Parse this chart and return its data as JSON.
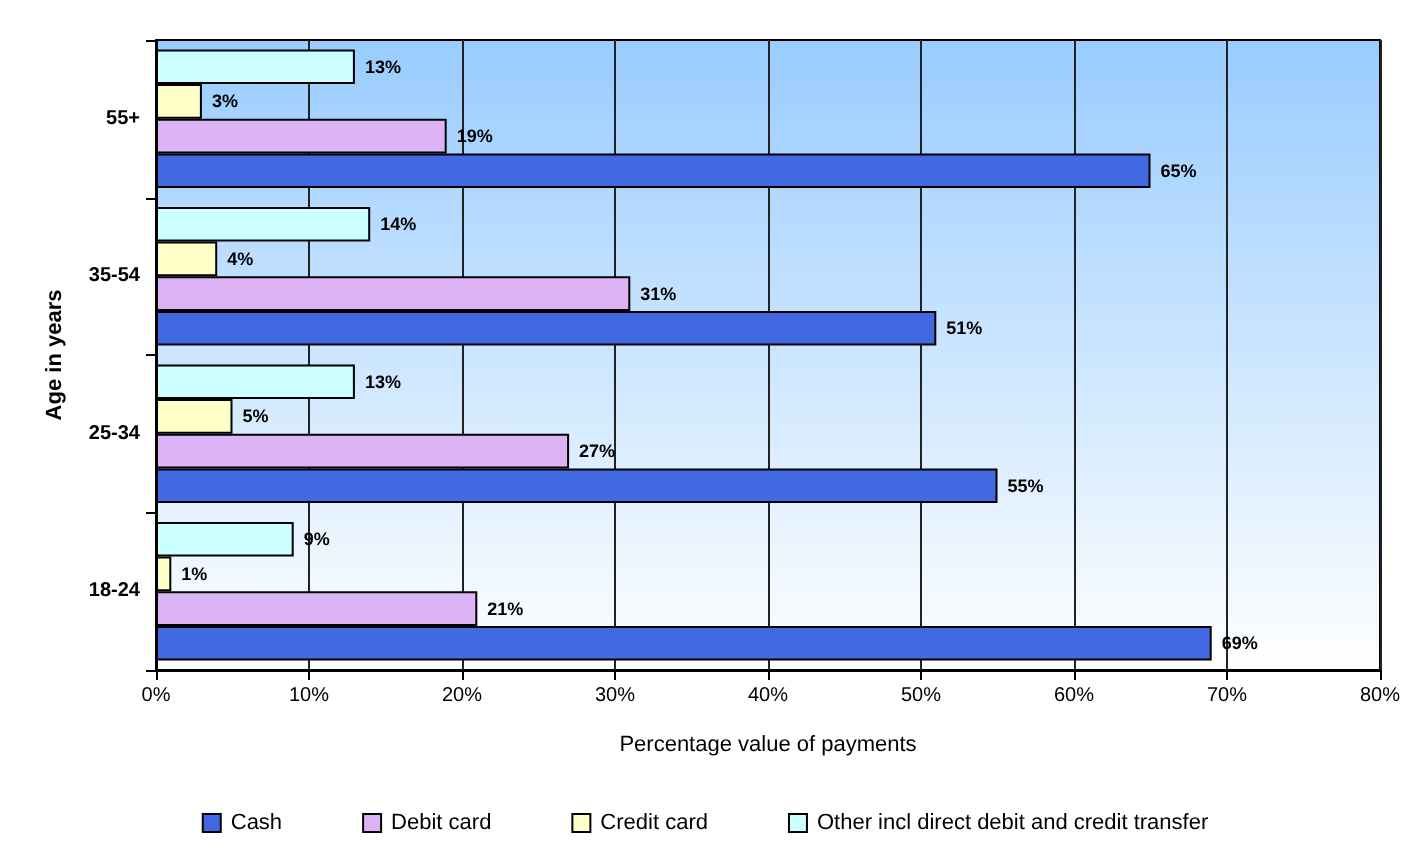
{
  "chart_data": {
    "type": "bar",
    "orientation": "horizontal",
    "xlabel": "Percentage value of payments",
    "ylabel": "Age in years",
    "categories": [
      "55+",
      "35-54",
      "25-34",
      "18-24"
    ],
    "series": [
      {
        "name": "Cash",
        "color": "#4169e1",
        "values": [
          65,
          51,
          55,
          69
        ],
        "value_labels": [
          "65%",
          "51%",
          "55%",
          "69%"
        ]
      },
      {
        "name": "Debit card",
        "color": "#dcb4f5",
        "values": [
          19,
          31,
          27,
          21
        ],
        "value_labels": [
          "19%",
          "31%",
          "27%",
          "21%"
        ]
      },
      {
        "name": "Credit card",
        "color": "#ffffc8",
        "values": [
          3,
          4,
          5,
          1
        ],
        "value_labels": [
          "3%",
          "4%",
          "5%",
          "1%"
        ]
      },
      {
        "name": "Other incl direct debit and credit transfer",
        "color": "#ccffff",
        "values": [
          13,
          14,
          13,
          9
        ],
        "value_labels": [
          "13%",
          "14%",
          "13%",
          "9%"
        ]
      }
    ],
    "xlim": [
      0,
      80
    ],
    "xticks": [
      {
        "value": 0,
        "label": "0%"
      },
      {
        "value": 10,
        "label": "10%"
      },
      {
        "value": 20,
        "label": "20%"
      },
      {
        "value": 30,
        "label": "30%"
      },
      {
        "value": 40,
        "label": "40%"
      },
      {
        "value": 50,
        "label": "50%"
      },
      {
        "value": 60,
        "label": "60%"
      },
      {
        "value": 70,
        "label": "70%"
      },
      {
        "value": 80,
        "label": "80%"
      }
    ],
    "grid": "x",
    "legend": "bottom"
  }
}
